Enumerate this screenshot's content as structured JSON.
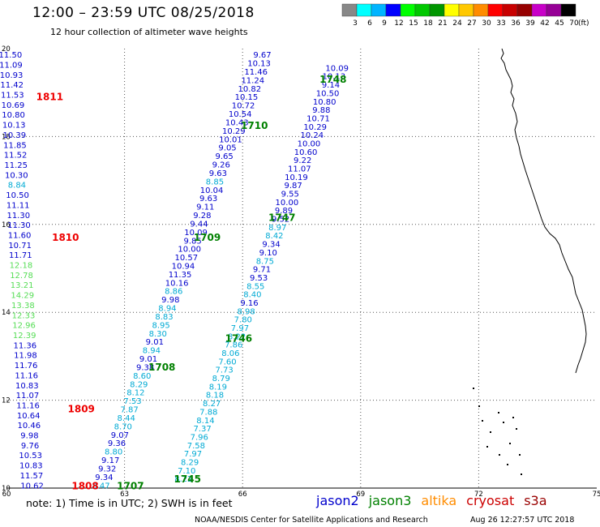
{
  "header": {
    "title": "12:00 – 23:59 UTC 08/25/2018",
    "subtitle": "12 hour collection of altimeter wave heights"
  },
  "colorbar": {
    "labels": [
      "3",
      "6",
      "9",
      "12",
      "15",
      "18",
      "21",
      "24",
      "27",
      "30",
      "33",
      "36",
      "39",
      "42",
      "45",
      "70"
    ],
    "unit": "(ft)",
    "colors": [
      "#888888",
      "#00ffff",
      "#00b4ff",
      "#0000ff",
      "#00ff00",
      "#00c800",
      "#009600",
      "#ffff00",
      "#ffc800",
      "#ff8c00",
      "#ff0000",
      "#c80000",
      "#960000",
      "#c800c8",
      "#960096",
      "#000000"
    ]
  },
  "footer": {
    "note": "note: 1) Time is in UTC; 2) SWH is in feet",
    "credit": "NOAA/NESDIS Center for Satellite Applications and Research",
    "timestamp": "Aug 26 12:27:57 UTC 2018"
  },
  "legend": [
    {
      "name": "jason2",
      "color": "#0000cc"
    },
    {
      "name": "jason3",
      "color": "#008000"
    },
    {
      "name": "altika",
      "color": "#ff8c00"
    },
    {
      "name": "cryosat",
      "color": "#cc0000"
    },
    {
      "name": "s3a",
      "color": "#990000"
    }
  ],
  "chart_data": {
    "type": "scatter",
    "x_ticks": [
      "60",
      "63",
      "66",
      "69",
      "72",
      "75"
    ],
    "y_ticks": [
      "10",
      "12",
      "14",
      "16",
      "18",
      "20"
    ],
    "xlim": [
      60,
      75
    ],
    "ylim": [
      10,
      20
    ],
    "grid": true,
    "time_labels": [
      {
        "text": "1811",
        "lon": 61.1,
        "lat": 18.9,
        "color": "#ee0000"
      },
      {
        "text": "1810",
        "lon": 61.5,
        "lat": 15.7,
        "color": "#ee0000"
      },
      {
        "text": "1809",
        "lon": 61.9,
        "lat": 11.8,
        "color": "#ee0000"
      },
      {
        "text": "1808",
        "lon": 62.0,
        "lat": 10.05,
        "color": "#ee0000"
      },
      {
        "text": "1748",
        "lon": 68.3,
        "lat": 19.3,
        "color": "#008000"
      },
      {
        "text": "1710",
        "lon": 66.3,
        "lat": 18.25,
        "color": "#008000"
      },
      {
        "text": "1747",
        "lon": 67.0,
        "lat": 16.15,
        "color": "#008000"
      },
      {
        "text": "1709",
        "lon": 65.1,
        "lat": 15.7,
        "color": "#008000"
      },
      {
        "text": "1746",
        "lon": 65.9,
        "lat": 13.4,
        "color": "#008000"
      },
      {
        "text": "1708",
        "lon": 63.95,
        "lat": 12.75,
        "color": "#008000"
      },
      {
        "text": "1745",
        "lon": 64.6,
        "lat": 10.2,
        "color": "#008000"
      },
      {
        "text": "1707",
        "lon": 63.15,
        "lat": 10.05,
        "color": "#008000"
      }
    ],
    "tracks": [
      {
        "name": "",
        "color": "#0000cc",
        "lon_top": 60.1,
        "lat_top": 19.85,
        "lon_bottom": 60.65,
        "lat_bottom": 10.05,
        "values": [
          "11.50",
          "11.09",
          "10.93",
          "11.42",
          "11.53",
          "10.69",
          "10.80",
          "10.13",
          "10.39",
          "11.85",
          "11.52",
          "11.25",
          "10.30",
          "8.84",
          "10.50",
          "11.11",
          "11.30",
          "11.30",
          "11.60",
          "10.71",
          "11.71",
          "12.18",
          "12.78",
          "13.21",
          "14.29",
          "13.38",
          "12.33",
          "12.96",
          "12.39",
          "11.36",
          "11.98",
          "11.76",
          "11.16",
          "10.83",
          "11.07",
          "11.16",
          "10.64",
          "10.46",
          "9.98",
          "9.76",
          "10.53",
          "10.83",
          "11.57",
          "10.62"
        ]
      },
      {
        "name": "",
        "color": "#0000cc",
        "lon_top": 66.5,
        "lat_top": 19.85,
        "lon_bottom": 62.4,
        "lat_bottom": 10.05,
        "values": [
          "9.67",
          "10.13",
          "11.46",
          "11.24",
          "10.82",
          "10.15",
          "10.72",
          "10.54",
          "10.43",
          "10.29",
          "10.01",
          "9.05",
          "9.65",
          "9.26",
          "9.63",
          "8.85",
          "10.04",
          "9.63",
          "9.11",
          "9.28",
          "9.44",
          "10.09",
          "9.85",
          "10.00",
          "10.57",
          "10.94",
          "11.35",
          "10.16",
          "8.86",
          "9.98",
          "8.94",
          "8.83",
          "8.95",
          "8.30",
          "9.01",
          "8.94",
          "9.01",
          "9.38",
          "8.60",
          "8.29",
          "8.12",
          "7.53",
          "7.87",
          "8.44",
          "8.70",
          "9.07",
          "9.36",
          "8.80",
          "9.17",
          "9.32",
          "9.34",
          "8.47"
        ]
      },
      {
        "name": "",
        "color": "#0000cc",
        "lon_top": 68.4,
        "lat_top": 19.55,
        "lon_bottom": 64.5,
        "lat_bottom": 10.2,
        "values": [
          "10.09",
          "10.13",
          "9.14",
          "10.50",
          "10.80",
          "9.88",
          "10.71",
          "10.29",
          "10.24",
          "10.00",
          "10.60",
          "9.22",
          "11.07",
          "10.19",
          "9.87",
          "9.55",
          "10.00",
          "9.89",
          "9.52",
          "8.97",
          "8.42",
          "9.34",
          "9.10",
          "8.75",
          "9.71",
          "9.53",
          "8.55",
          "8.40",
          "9.16",
          "8.98",
          "7.80",
          "7.97",
          "8.22",
          "7.86",
          "8.06",
          "7.60",
          "7.73",
          "8.79",
          "8.19",
          "8.18",
          "8.27",
          "7.88",
          "8.14",
          "7.37",
          "7.96",
          "7.58",
          "7.97",
          "8.29",
          "7.10",
          "8.22"
        ]
      }
    ]
  }
}
